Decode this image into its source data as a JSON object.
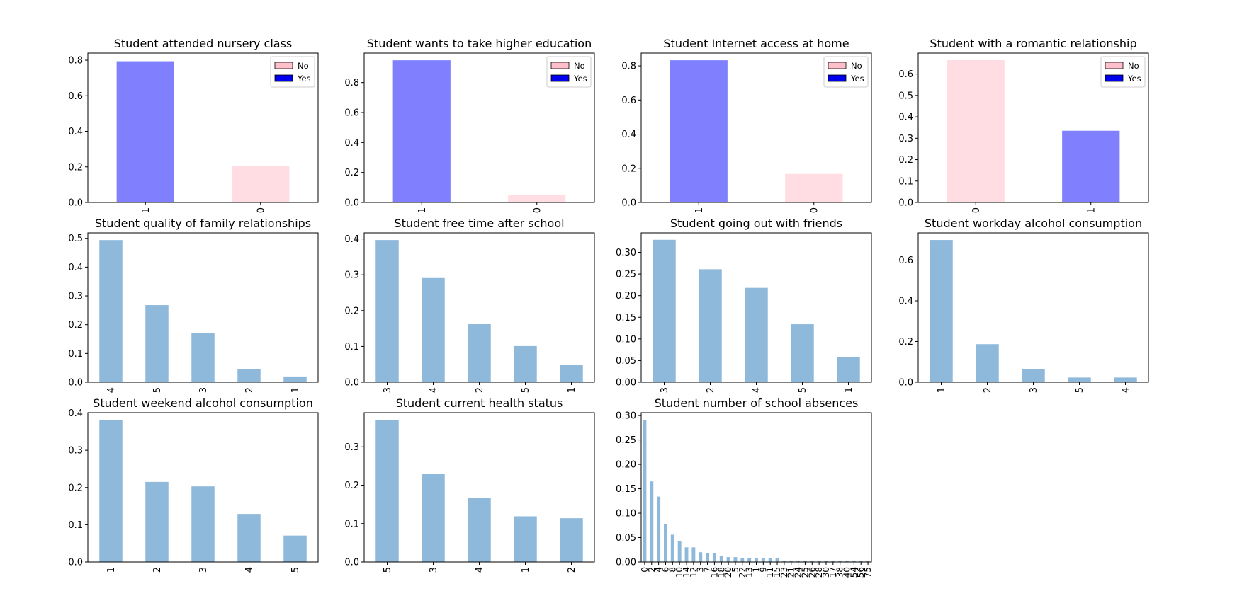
{
  "colors": {
    "blue": "#8080ff",
    "pink": "#ffdde2",
    "steelblue": "#8fb9db",
    "legend_no": "#ffc0cb",
    "legend_yes": "#0000ee"
  },
  "chart_data": [
    {
      "type": "bar",
      "title": "Student attended nursery class",
      "categories": [
        "1",
        "0"
      ],
      "values": [
        0.794,
        0.206
      ],
      "bar_colors": [
        "blue",
        "pink"
      ],
      "ylim": [
        0,
        0.84
      ],
      "yticks": [
        0.0,
        0.2,
        0.4,
        0.6,
        0.8
      ],
      "ytick_labels": [
        "0.0",
        "0.2",
        "0.4",
        "0.6",
        "0.8"
      ],
      "legend": [
        {
          "label": "No",
          "color": "legend_no"
        },
        {
          "label": "Yes",
          "color": "legend_yes"
        }
      ],
      "legend_position": "top-right"
    },
    {
      "type": "bar",
      "title": "Student wants to take higher education",
      "categories": [
        "1",
        "0"
      ],
      "values": [
        0.949,
        0.051
      ],
      "bar_colors": [
        "blue",
        "pink"
      ],
      "ylim": [
        0,
        0.997
      ],
      "yticks": [
        0.0,
        0.2,
        0.4,
        0.6,
        0.8
      ],
      "ytick_labels": [
        "0.0",
        "0.2",
        "0.4",
        "0.6",
        "0.8"
      ],
      "legend": [
        {
          "label": "No",
          "color": "legend_no"
        },
        {
          "label": "Yes",
          "color": "legend_yes"
        }
      ],
      "legend_position": "top-right"
    },
    {
      "type": "bar",
      "title": "Student Internet access at home",
      "categories": [
        "1",
        "0"
      ],
      "values": [
        0.833,
        0.167
      ],
      "bar_colors": [
        "blue",
        "pink"
      ],
      "ylim": [
        0,
        0.875
      ],
      "yticks": [
        0.0,
        0.2,
        0.4,
        0.6,
        0.8
      ],
      "ytick_labels": [
        "0.0",
        "0.2",
        "0.4",
        "0.6",
        "0.8"
      ],
      "legend": [
        {
          "label": "No",
          "color": "legend_no"
        },
        {
          "label": "Yes",
          "color": "legend_yes"
        }
      ],
      "legend_position": "top-right"
    },
    {
      "type": "bar",
      "title": "Student with a romantic relationship",
      "categories": [
        "0",
        "1"
      ],
      "values": [
        0.665,
        0.335
      ],
      "bar_colors": [
        "pink",
        "blue"
      ],
      "ylim": [
        0,
        0.698
      ],
      "yticks": [
        0.0,
        0.1,
        0.2,
        0.3,
        0.4,
        0.5,
        0.6
      ],
      "ytick_labels": [
        "0.0",
        "0.1",
        "0.2",
        "0.3",
        "0.4",
        "0.5",
        "0.6"
      ],
      "legend": [
        {
          "label": "No",
          "color": "legend_no"
        },
        {
          "label": "Yes",
          "color": "legend_yes"
        }
      ],
      "legend_position": "top-right"
    },
    {
      "type": "bar",
      "title": "Student  quality of family relationships",
      "categories": [
        "4",
        "5",
        "3",
        "2",
        "1"
      ],
      "values": [
        0.494,
        0.268,
        0.172,
        0.046,
        0.02
      ],
      "bar_colors": [
        "steelblue"
      ],
      "ylim": [
        0,
        0.519
      ],
      "yticks": [
        0.0,
        0.1,
        0.2,
        0.3,
        0.4,
        0.5
      ],
      "ytick_labels": [
        "0.0",
        "0.1",
        "0.2",
        "0.3",
        "0.4",
        "0.5"
      ]
    },
    {
      "type": "bar",
      "title": "Student free time after school",
      "categories": [
        "3",
        "4",
        "2",
        "5",
        "1"
      ],
      "values": [
        0.397,
        0.291,
        0.162,
        0.101,
        0.048
      ],
      "bar_colors": [
        "steelblue"
      ],
      "ylim": [
        0,
        0.417
      ],
      "yticks": [
        0.0,
        0.1,
        0.2,
        0.3,
        0.4
      ],
      "ytick_labels": [
        "0.0",
        "0.1",
        "0.2",
        "0.3",
        "0.4"
      ]
    },
    {
      "type": "bar",
      "title": "Student going out with friends",
      "categories": [
        "3",
        "2",
        "4",
        "5",
        "1"
      ],
      "values": [
        0.329,
        0.261,
        0.218,
        0.134,
        0.058
      ],
      "bar_colors": [
        "steelblue"
      ],
      "ylim": [
        0,
        0.345
      ],
      "yticks": [
        0.0,
        0.05,
        0.1,
        0.15,
        0.2,
        0.25,
        0.3
      ],
      "ytick_labels": [
        "0.00",
        "0.05",
        "0.10",
        "0.15",
        "0.20",
        "0.25",
        "0.30"
      ]
    },
    {
      "type": "bar",
      "title": "Student workday alcohol consumption",
      "categories": [
        "1",
        "2",
        "3",
        "5",
        "4"
      ],
      "values": [
        0.699,
        0.187,
        0.066,
        0.023,
        0.023
      ],
      "bar_colors": [
        "steelblue"
      ],
      "ylim": [
        0,
        0.734
      ],
      "yticks": [
        0.0,
        0.2,
        0.4,
        0.6
      ],
      "ytick_labels": [
        "0.0",
        "0.2",
        "0.4",
        "0.6"
      ]
    },
    {
      "type": "bar",
      "title": "Student weekend alcohol consumption",
      "categories": [
        "1",
        "2",
        "3",
        "4",
        "5"
      ],
      "values": [
        0.382,
        0.215,
        0.203,
        0.129,
        0.071
      ],
      "bar_colors": [
        "steelblue"
      ],
      "ylim": [
        0,
        0.401
      ],
      "yticks": [
        0.0,
        0.1,
        0.2,
        0.3,
        0.4
      ],
      "ytick_labels": [
        "0.0",
        "0.1",
        "0.2",
        "0.3",
        "0.4"
      ]
    },
    {
      "type": "bar",
      "title": "Student current health status",
      "categories": [
        "5",
        "3",
        "4",
        "1",
        "2"
      ],
      "values": [
        0.37,
        0.23,
        0.167,
        0.119,
        0.114
      ],
      "bar_colors": [
        "steelblue"
      ],
      "ylim": [
        0,
        0.389
      ],
      "yticks": [
        0.0,
        0.1,
        0.2,
        0.3
      ],
      "ytick_labels": [
        "0.0",
        "0.1",
        "0.2",
        "0.3"
      ]
    },
    {
      "type": "bar",
      "title": "Student number of school absences",
      "categories": [
        "0",
        "2",
        "4",
        "6",
        "8",
        "10",
        "14",
        "12",
        "3",
        "7",
        "16",
        "18",
        "20",
        "5",
        "22",
        "13",
        "1",
        "9",
        "11",
        "15",
        "23",
        "21",
        "24",
        "25",
        "26",
        "28",
        "30",
        "17",
        "38",
        "40",
        "54",
        "56",
        "75"
      ],
      "values": [
        0.291,
        0.165,
        0.134,
        0.078,
        0.056,
        0.043,
        0.03,
        0.03,
        0.02,
        0.018,
        0.018,
        0.013,
        0.01,
        0.01,
        0.008,
        0.008,
        0.008,
        0.008,
        0.008,
        0.008,
        0.003,
        0.003,
        0.003,
        0.003,
        0.003,
        0.003,
        0.003,
        0.003,
        0.003,
        0.003,
        0.003,
        0.003,
        0.003
      ],
      "bar_colors": [
        "steelblue"
      ],
      "ylim": [
        0,
        0.306
      ],
      "yticks": [
        0.0,
        0.05,
        0.1,
        0.15,
        0.2,
        0.25,
        0.3
      ],
      "ytick_labels": [
        "0.00",
        "0.05",
        "0.10",
        "0.15",
        "0.20",
        "0.25",
        "0.30"
      ]
    }
  ]
}
